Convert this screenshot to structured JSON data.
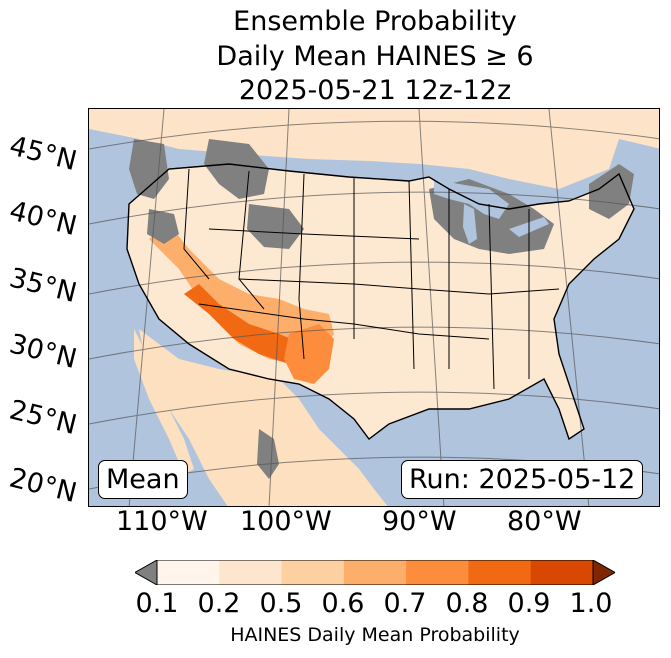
{
  "title": {
    "line1": "Ensemble Probability",
    "line2": "Daily Mean HAINES ≥ 6",
    "line3": "2025-05-21 12z-12z"
  },
  "map": {
    "latitude_labels": [
      "45°N",
      "40°N",
      "35°N",
      "30°N",
      "25°N",
      "20°N"
    ],
    "longitude_labels": [
      "110°W",
      "100°W",
      "90°W",
      "80°W"
    ],
    "stat_box": "Mean",
    "run_box": "Run: 2025-05-12",
    "colors": {
      "ocean": "#b0c4de",
      "land": "#fdf5ec",
      "below_threshold": "#808080"
    }
  },
  "colorbar": {
    "label": "HAINES Daily Mean Probability",
    "ticks": [
      "0.1",
      "0.2",
      "0.5",
      "0.6",
      "0.7",
      "0.8",
      "0.9",
      "1.0"
    ],
    "colors": [
      "#fff5eb",
      "#fee6ce",
      "#fdd0a2",
      "#fdae6b",
      "#fd8d3c",
      "#f16913",
      "#d94801",
      "#a63603"
    ],
    "under_color": "#808080",
    "over_color": "#7f2704"
  }
}
